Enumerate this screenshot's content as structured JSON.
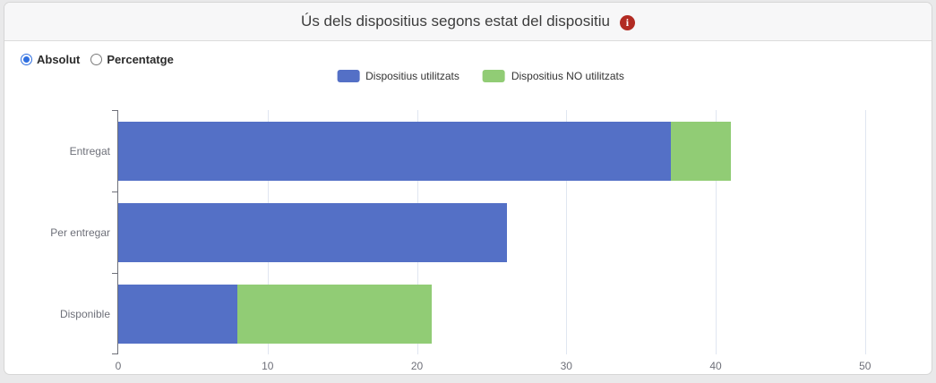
{
  "page": {
    "title": "Ús dels dispositius segons estat del dispositiu"
  },
  "header": {
    "info_glyph": "i",
    "info_color": "#b22b23"
  },
  "controls": {
    "options": [
      {
        "label": "Absolut",
        "selected": true
      },
      {
        "label": "Percentatge",
        "selected": false
      }
    ]
  },
  "legend": {
    "items": [
      {
        "label": "Dispositius utilitzats",
        "color": "#5470c6"
      },
      {
        "label": "Dispositius NO utilitzats",
        "color": "#91cc75"
      }
    ]
  },
  "chart_data": {
    "type": "bar",
    "orientation": "horizontal",
    "stacked": true,
    "title": "Ús dels dispositius segons estat del dispositiu",
    "categories": [
      "Entregat",
      "Per entregar",
      "Disponible"
    ],
    "series": [
      {
        "name": "Dispositius utilitzats",
        "color": "#5470c6",
        "values": [
          37,
          26,
          8
        ]
      },
      {
        "name": "Dispositius NO utilitzats",
        "color": "#91cc75",
        "values": [
          4,
          0,
          13
        ]
      }
    ],
    "totals": [
      41,
      26,
      21
    ],
    "xlabel": "",
    "ylabel": "",
    "x_ticks": [
      0,
      10,
      20,
      30,
      40,
      50
    ],
    "xlim": [
      0,
      54
    ],
    "grid": true,
    "legend_position": "top-center",
    "colors": {
      "axis": "#6e7079",
      "gridline": "#e0e6f1",
      "tick_label": "#6e7079"
    }
  }
}
